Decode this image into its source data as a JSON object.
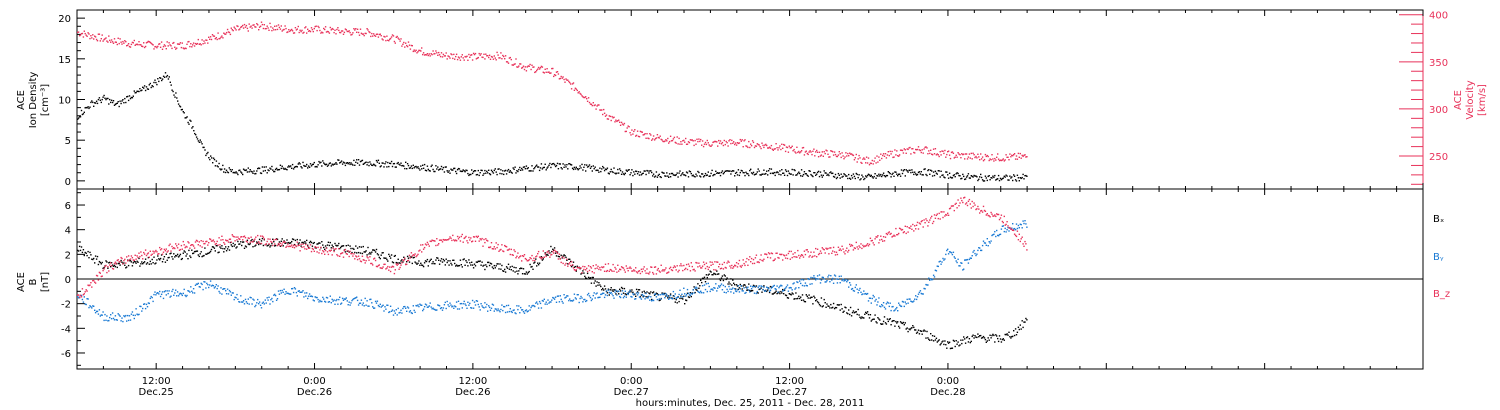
{
  "colors": {
    "black": "#000000",
    "red": "#e8325a",
    "blue": "#1a7ad4"
  },
  "labels": {
    "density_title_line1": "ACE",
    "density_title_line2": "Ion Density",
    "density_title_line3": "[cm⁻³]",
    "velocity_title_line1": "ACE",
    "velocity_title_line2": "Velocity",
    "velocity_title_line3": "[km/s]",
    "b_title_line1": "ACE",
    "b_title_line2": "B",
    "b_title_line3": "[nT]",
    "xlabel": "hours:minutes, Dec. 25, 2011 - Dec. 28, 2011",
    "legend": [
      {
        "label": "Bₓ",
        "color": "#000000"
      },
      {
        "label": "Bᵧ",
        "color": "#1a7ad4"
      },
      {
        "label": "B_z",
        "color": "#e8325a"
      }
    ]
  },
  "chart_data": [
    {
      "type": "scatter",
      "panel": "top",
      "x_unit": "hours since Dec. 25, 2011 00:00",
      "xlim": [
        6,
        108
      ],
      "x_ticks": [
        {
          "x": 12,
          "time": "12:00",
          "date": "Dec.25"
        },
        {
          "x": 24,
          "time": "0:00",
          "date": "Dec.26"
        },
        {
          "x": 36,
          "time": "12:00",
          "date": "Dec.26"
        },
        {
          "x": 48,
          "time": "0:00",
          "date": "Dec.27"
        },
        {
          "x": 60,
          "time": "12:00",
          "date": "Dec.27"
        },
        {
          "x": 72,
          "time": "0:00",
          "date": "Dec.28"
        }
      ],
      "left_axis": {
        "label": "ACE Ion Density [cm⁻³]",
        "ylim": [
          -1,
          21
        ],
        "ticks": [
          0,
          5,
          10,
          15,
          20
        ]
      },
      "right_axis": {
        "label": "ACE Velocity [km/s]",
        "ylim": [
          215,
          405
        ],
        "ticks": [
          250,
          300,
          350,
          400
        ]
      },
      "series": [
        {
          "axis": "left",
          "color": "#000000",
          "points": [
            [
              6,
              8.0
            ],
            [
              7,
              9.5
            ],
            [
              8,
              10.2
            ],
            [
              9,
              9.4
            ],
            [
              10,
              10.5
            ],
            [
              11,
              11.3
            ],
            [
              12,
              12.3
            ],
            [
              12.8,
              13.2
            ],
            [
              13.3,
              11.0
            ],
            [
              14,
              8.5
            ],
            [
              14.8,
              6.5
            ],
            [
              15.5,
              4.0
            ],
            [
              16.3,
              2.5
            ],
            [
              17.2,
              1.4
            ],
            [
              18,
              1.2
            ],
            [
              20,
              1.4
            ],
            [
              22,
              1.8
            ],
            [
              24,
              2.1
            ],
            [
              26,
              2.3
            ],
            [
              28,
              2.3
            ],
            [
              30,
              2.1
            ],
            [
              32,
              1.8
            ],
            [
              34,
              1.4
            ],
            [
              36,
              1.1
            ],
            [
              38,
              1.2
            ],
            [
              40,
              1.6
            ],
            [
              42,
              1.9
            ],
            [
              44,
              1.8
            ],
            [
              46,
              1.4
            ],
            [
              48,
              1.1
            ],
            [
              50,
              0.9
            ],
            [
              52,
              0.9
            ],
            [
              54,
              1.0
            ],
            [
              56,
              1.1
            ],
            [
              58,
              1.2
            ],
            [
              60,
              1.1
            ],
            [
              62,
              1.0
            ],
            [
              64,
              0.7
            ],
            [
              66,
              0.5
            ],
            [
              68,
              1.0
            ],
            [
              70,
              1.2
            ],
            [
              72,
              0.8
            ],
            [
              74,
              0.5
            ],
            [
              76,
              0.4
            ],
            [
              78,
              0.5
            ]
          ]
        },
        {
          "axis": "right",
          "color": "#e8325a",
          "points": [
            [
              6,
              382
            ],
            [
              8,
              375
            ],
            [
              10,
              370
            ],
            [
              12,
              368
            ],
            [
              14,
              368
            ],
            [
              16,
              375
            ],
            [
              18,
              385
            ],
            [
              20,
              389
            ],
            [
              22,
              385
            ],
            [
              24,
              385
            ],
            [
              26,
              383
            ],
            [
              28,
              382
            ],
            [
              30,
              375
            ],
            [
              32,
              362
            ],
            [
              34,
              357
            ],
            [
              36,
              356
            ],
            [
              38,
              357
            ],
            [
              40,
              345
            ],
            [
              42,
              340
            ],
            [
              44,
              320
            ],
            [
              46,
              295
            ],
            [
              48,
              276
            ],
            [
              50,
              270
            ],
            [
              52,
              266
            ],
            [
              54,
              264
            ],
            [
              56,
              265
            ],
            [
              58,
              262
            ],
            [
              60,
              258
            ],
            [
              62,
              254
            ],
            [
              64,
              252
            ],
            [
              66,
              245
            ],
            [
              68,
              254
            ],
            [
              70,
              258
            ],
            [
              72,
              252
            ],
            [
              74,
              250
            ],
            [
              76,
              249
            ],
            [
              78,
              250
            ]
          ]
        }
      ]
    },
    {
      "type": "scatter",
      "panel": "bottom",
      "x_unit": "hours since Dec. 25, 2011 00:00",
      "xlim": [
        6,
        108
      ],
      "ylabel": "ACE B [nT]",
      "ylim": [
        -7.3,
        7.3
      ],
      "y_ticks": [
        -6,
        -4,
        -2,
        0,
        2,
        4,
        6
      ],
      "zero_line": true,
      "series": [
        {
          "name": "Bₓ",
          "color": "#000000",
          "points": [
            [
              6,
              2.5
            ],
            [
              8,
              1.2
            ],
            [
              10,
              1.3
            ],
            [
              12,
              1.6
            ],
            [
              14,
              2.0
            ],
            [
              16,
              2.3
            ],
            [
              18,
              2.8
            ],
            [
              20,
              3.0
            ],
            [
              22,
              3.0
            ],
            [
              24,
              2.9
            ],
            [
              26,
              2.6
            ],
            [
              28,
              2.3
            ],
            [
              30,
              1.7
            ],
            [
              32,
              1.4
            ],
            [
              34,
              1.5
            ],
            [
              36,
              1.3
            ],
            [
              38,
              1.0
            ],
            [
              40,
              0.7
            ],
            [
              42,
              2.5
            ],
            [
              44,
              0.8
            ],
            [
              46,
              -0.9
            ],
            [
              48,
              -1.0
            ],
            [
              50,
              -1.4
            ],
            [
              52,
              -1.6
            ],
            [
              54,
              0.6
            ],
            [
              56,
              -0.5
            ],
            [
              58,
              -0.8
            ],
            [
              60,
              -1.2
            ],
            [
              62,
              -1.7
            ],
            [
              64,
              -2.4
            ],
            [
              66,
              -3.0
            ],
            [
              68,
              -3.6
            ],
            [
              70,
              -4.3
            ],
            [
              72,
              -5.3
            ],
            [
              74,
              -4.7
            ],
            [
              76,
              -4.8
            ],
            [
              77,
              -4.3
            ],
            [
              78,
              -3.2
            ]
          ]
        },
        {
          "name": "Bᵧ",
          "color": "#1a7ad4",
          "points": [
            [
              6,
              -1.2
            ],
            [
              8,
              -3.0
            ],
            [
              10,
              -3.1
            ],
            [
              12,
              -1.2
            ],
            [
              14,
              -1.1
            ],
            [
              16,
              -0.3
            ],
            [
              18,
              -1.5
            ],
            [
              20,
              -2.0
            ],
            [
              22,
              -0.8
            ],
            [
              24,
              -1.5
            ],
            [
              26,
              -1.7
            ],
            [
              28,
              -1.8
            ],
            [
              30,
              -2.6
            ],
            [
              32,
              -2.3
            ],
            [
              34,
              -2.1
            ],
            [
              36,
              -2.0
            ],
            [
              38,
              -2.4
            ],
            [
              40,
              -2.5
            ],
            [
              42,
              -1.6
            ],
            [
              44,
              -1.5
            ],
            [
              46,
              -1.2
            ],
            [
              48,
              -1.2
            ],
            [
              50,
              -1.5
            ],
            [
              52,
              -1.0
            ],
            [
              54,
              -0.6
            ],
            [
              56,
              -0.8
            ],
            [
              58,
              -0.8
            ],
            [
              60,
              -0.6
            ],
            [
              62,
              0.1
            ],
            [
              64,
              0.0
            ],
            [
              66,
              -1.5
            ],
            [
              68,
              -2.4
            ],
            [
              70,
              -1.0
            ],
            [
              72,
              2.4
            ],
            [
              73,
              1.0
            ],
            [
              74,
              2.2
            ],
            [
              76,
              4.0
            ],
            [
              78,
              4.6
            ]
          ]
        },
        {
          "name": "B_z",
          "color": "#e8325a",
          "points": [
            [
              6,
              -1.5
            ],
            [
              8,
              0.8
            ],
            [
              10,
              1.8
            ],
            [
              12,
              2.3
            ],
            [
              14,
              2.8
            ],
            [
              16,
              3.0
            ],
            [
              18,
              3.4
            ],
            [
              20,
              3.2
            ],
            [
              22,
              2.9
            ],
            [
              24,
              2.4
            ],
            [
              26,
              2.2
            ],
            [
              28,
              1.6
            ],
            [
              30,
              0.8
            ],
            [
              32,
              2.5
            ],
            [
              34,
              3.4
            ],
            [
              36,
              3.3
            ],
            [
              38,
              2.6
            ],
            [
              40,
              1.7
            ],
            [
              42,
              2.2
            ],
            [
              44,
              0.7
            ],
            [
              46,
              1.0
            ],
            [
              48,
              0.8
            ],
            [
              50,
              0.8
            ],
            [
              52,
              1.0
            ],
            [
              54,
              1.1
            ],
            [
              56,
              1.3
            ],
            [
              58,
              1.8
            ],
            [
              60,
              2.0
            ],
            [
              62,
              2.2
            ],
            [
              64,
              2.4
            ],
            [
              66,
              3.0
            ],
            [
              68,
              3.8
            ],
            [
              70,
              4.5
            ],
            [
              72,
              5.5
            ],
            [
              73,
              6.5
            ],
            [
              74,
              5.9
            ],
            [
              76,
              5.0
            ],
            [
              77,
              4.0
            ],
            [
              78,
              2.5
            ]
          ]
        }
      ]
    }
  ]
}
